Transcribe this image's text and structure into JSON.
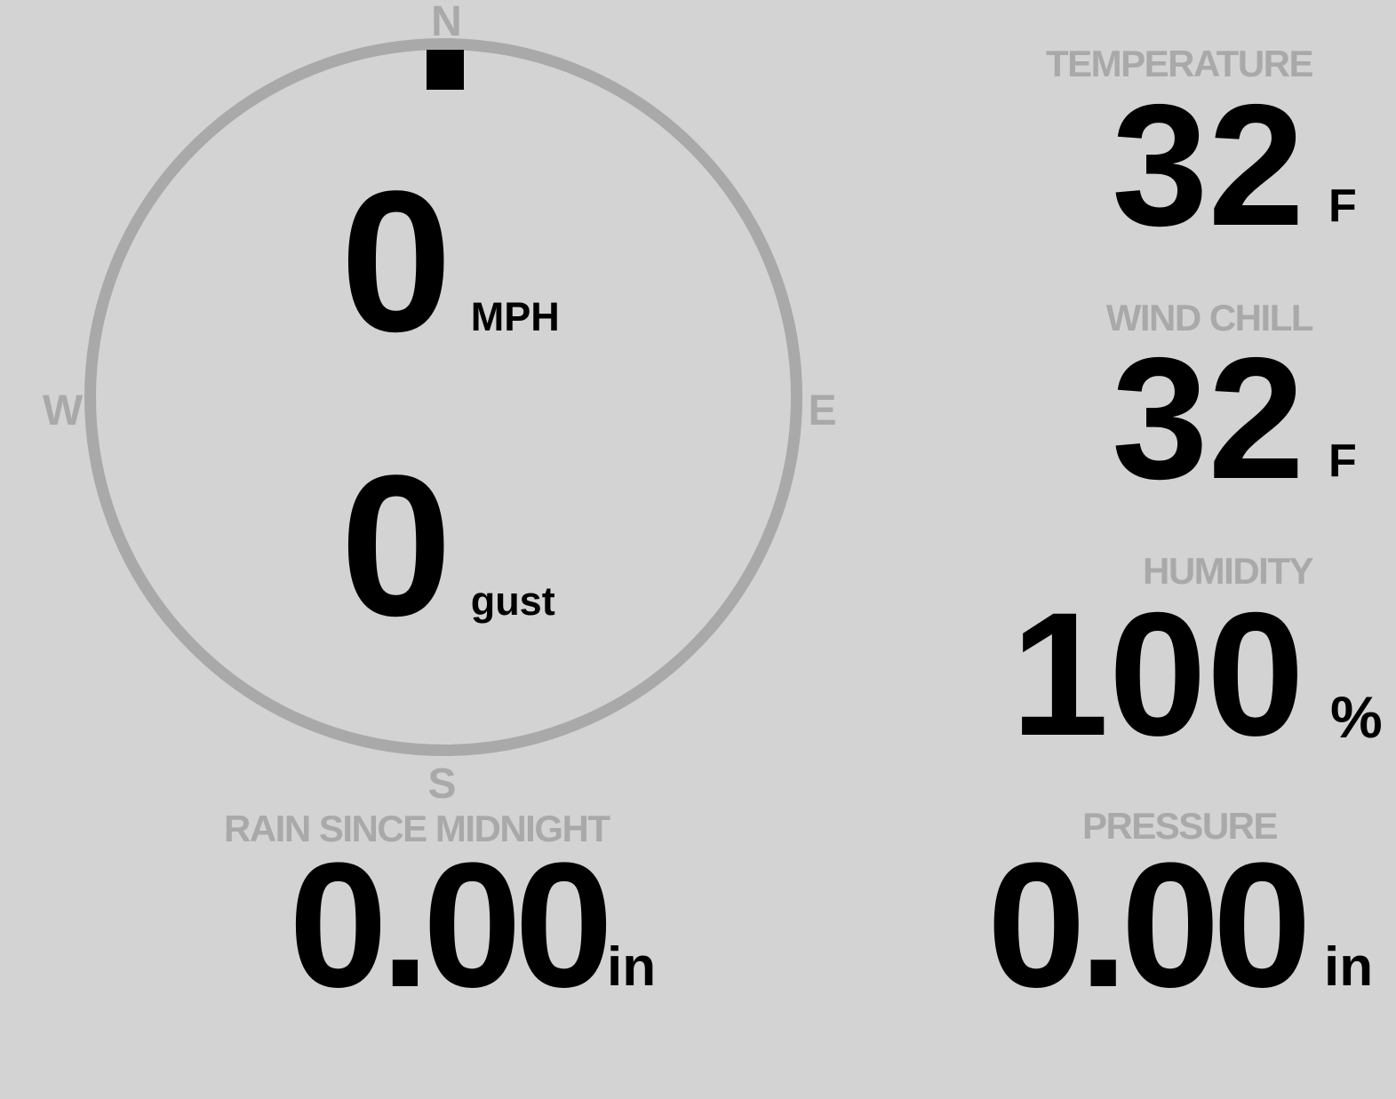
{
  "colors": {
    "background": "#d3d3d3",
    "muted": "#a9a9a9",
    "ink": "#000000"
  },
  "wind_gauge": {
    "compass": {
      "north": "N",
      "east": "E",
      "south": "S",
      "west": "W"
    },
    "direction_pointer": "N",
    "speed": {
      "value": "0",
      "unit": "MPH"
    },
    "gust": {
      "value": "0",
      "unit": "gust"
    }
  },
  "metrics": {
    "temperature": {
      "label": "TEMPERATURE",
      "value": "32",
      "unit": "F"
    },
    "wind_chill": {
      "label": "WIND CHILL",
      "value": "32",
      "unit": "F"
    },
    "humidity": {
      "label": "HUMIDITY",
      "value": "100",
      "unit": "%"
    },
    "rain_since_midnight": {
      "label": "RAIN SINCE MIDNIGHT",
      "value": "0.00",
      "unit": "in"
    },
    "pressure": {
      "label": "PRESSURE",
      "value": "0.00",
      "unit": "in"
    }
  }
}
